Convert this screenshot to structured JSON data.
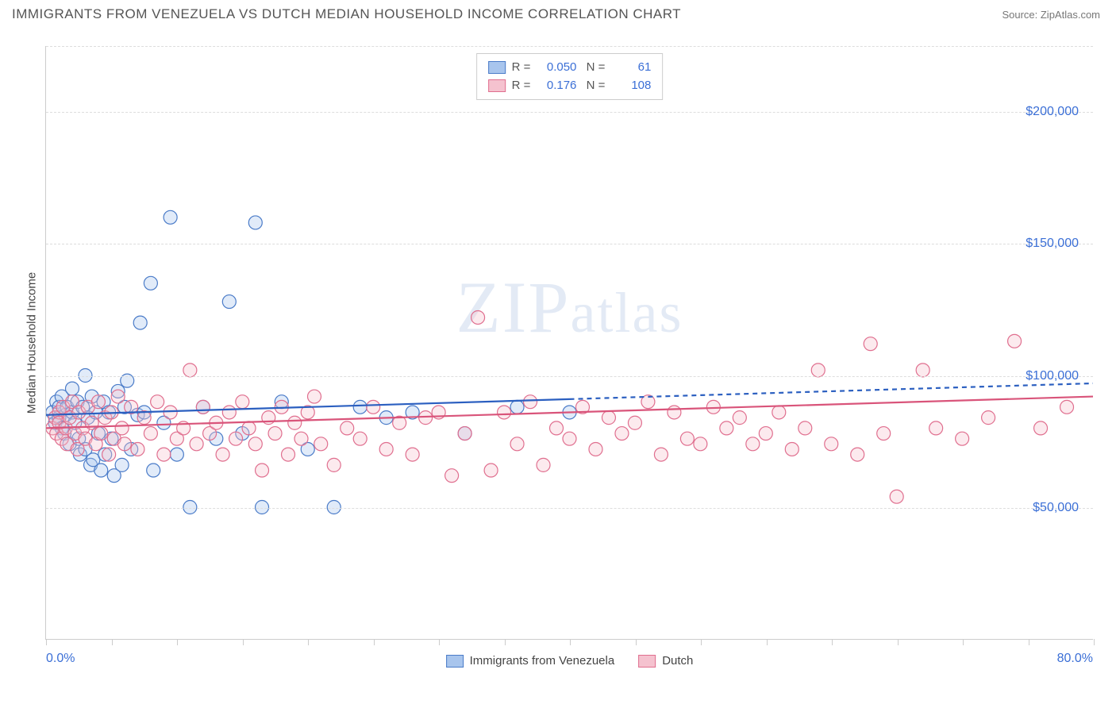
{
  "title": "IMMIGRANTS FROM VENEZUELA VS DUTCH MEDIAN HOUSEHOLD INCOME CORRELATION CHART",
  "source": "Source: ZipAtlas.com",
  "watermark": "ZIPatlas",
  "y_axis_label": "Median Household Income",
  "chart": {
    "type": "scatter",
    "background_color": "#ffffff",
    "grid_color": "#dddddd",
    "axis_color": "#cccccc",
    "tick_label_color": "#3b6fd6",
    "xlim": [
      0,
      80
    ],
    "ylim": [
      0,
      225000
    ],
    "x_start_label": "0.0%",
    "x_end_label": "80.0%",
    "x_tick_step": 5,
    "y_gridlines": [
      50000,
      100000,
      150000,
      200000,
      225000
    ],
    "y_tick_labels": [
      "$50,000",
      "$100,000",
      "$150,000",
      "$200,000"
    ],
    "marker_radius": 8.5,
    "marker_fill_opacity": 0.35,
    "marker_stroke_width": 1.2,
    "trend_line_width": 2.2,
    "series": [
      {
        "name": "Immigrants from Venezuela",
        "fill": "#a8c5ed",
        "stroke": "#4a7bc8",
        "trend_color": "#2b5fc0",
        "dash_after_x": 40,
        "R": "0.050",
        "N": "61",
        "trend": {
          "x1": 0,
          "y1": 85000,
          "x2": 80,
          "y2": 97000
        },
        "points": [
          [
            0.5,
            86000
          ],
          [
            0.7,
            82000
          ],
          [
            0.8,
            90000
          ],
          [
            1.0,
            84000
          ],
          [
            1.0,
            88000
          ],
          [
            1.2,
            80000
          ],
          [
            1.2,
            92000
          ],
          [
            1.4,
            78000
          ],
          [
            1.5,
            85000
          ],
          [
            1.6,
            88000
          ],
          [
            1.8,
            74000
          ],
          [
            2.0,
            86000
          ],
          [
            2.0,
            95000
          ],
          [
            2.2,
            82000
          ],
          [
            2.4,
            90000
          ],
          [
            2.5,
            76000
          ],
          [
            2.6,
            70000
          ],
          [
            2.8,
            88000
          ],
          [
            3.0,
            72000
          ],
          [
            3.0,
            100000
          ],
          [
            3.2,
            84000
          ],
          [
            3.4,
            66000
          ],
          [
            3.5,
            92000
          ],
          [
            3.6,
            68000
          ],
          [
            3.8,
            86000
          ],
          [
            4.0,
            78000
          ],
          [
            4.2,
            64000
          ],
          [
            4.4,
            90000
          ],
          [
            4.5,
            70000
          ],
          [
            4.8,
            86000
          ],
          [
            5.0,
            76000
          ],
          [
            5.2,
            62000
          ],
          [
            5.5,
            94000
          ],
          [
            5.8,
            66000
          ],
          [
            6.0,
            88000
          ],
          [
            6.2,
            98000
          ],
          [
            6.5,
            72000
          ],
          [
            7.0,
            85000
          ],
          [
            7.2,
            120000
          ],
          [
            7.5,
            86000
          ],
          [
            8.0,
            135000
          ],
          [
            8.2,
            64000
          ],
          [
            9.0,
            82000
          ],
          [
            9.5,
            160000
          ],
          [
            10.0,
            70000
          ],
          [
            11.0,
            50000
          ],
          [
            12.0,
            88000
          ],
          [
            13.0,
            76000
          ],
          [
            14.0,
            128000
          ],
          [
            15.0,
            78000
          ],
          [
            16.0,
            158000
          ],
          [
            16.5,
            50000
          ],
          [
            18.0,
            90000
          ],
          [
            20.0,
            72000
          ],
          [
            22.0,
            50000
          ],
          [
            24.0,
            88000
          ],
          [
            26.0,
            84000
          ],
          [
            28.0,
            86000
          ],
          [
            32.0,
            78000
          ],
          [
            36.0,
            88000
          ],
          [
            40.0,
            86000
          ]
        ]
      },
      {
        "name": "Dutch",
        "fill": "#f5c2cf",
        "stroke": "#e06f8f",
        "trend_color": "#d9547a",
        "dash_after_x": 80,
        "R": "0.176",
        "N": "108",
        "trend": {
          "x1": 0,
          "y1": 80000,
          "x2": 80,
          "y2": 92000
        },
        "points": [
          [
            0.5,
            80000
          ],
          [
            0.7,
            84000
          ],
          [
            0.8,
            78000
          ],
          [
            1.0,
            86000
          ],
          [
            1.0,
            82000
          ],
          [
            1.2,
            76000
          ],
          [
            1.3,
            88000
          ],
          [
            1.5,
            80000
          ],
          [
            1.6,
            74000
          ],
          [
            1.8,
            84000
          ],
          [
            2.0,
            90000
          ],
          [
            2.2,
            78000
          ],
          [
            2.4,
            72000
          ],
          [
            2.5,
            86000
          ],
          [
            2.8,
            80000
          ],
          [
            3.0,
            76000
          ],
          [
            3.2,
            88000
          ],
          [
            3.5,
            82000
          ],
          [
            3.8,
            74000
          ],
          [
            4.0,
            90000
          ],
          [
            4.2,
            78000
          ],
          [
            4.5,
            84000
          ],
          [
            4.8,
            70000
          ],
          [
            5.0,
            86000
          ],
          [
            5.2,
            76000
          ],
          [
            5.5,
            92000
          ],
          [
            5.8,
            80000
          ],
          [
            6.0,
            74000
          ],
          [
            6.5,
            88000
          ],
          [
            7.0,
            72000
          ],
          [
            7.5,
            84000
          ],
          [
            8.0,
            78000
          ],
          [
            8.5,
            90000
          ],
          [
            9.0,
            70000
          ],
          [
            9.5,
            86000
          ],
          [
            10.0,
            76000
          ],
          [
            10.5,
            80000
          ],
          [
            11.0,
            102000
          ],
          [
            11.5,
            74000
          ],
          [
            12.0,
            88000
          ],
          [
            12.5,
            78000
          ],
          [
            13.0,
            82000
          ],
          [
            13.5,
            70000
          ],
          [
            14.0,
            86000
          ],
          [
            14.5,
            76000
          ],
          [
            15.0,
            90000
          ],
          [
            15.5,
            80000
          ],
          [
            16.0,
            74000
          ],
          [
            16.5,
            64000
          ],
          [
            17.0,
            84000
          ],
          [
            17.5,
            78000
          ],
          [
            18.0,
            88000
          ],
          [
            18.5,
            70000
          ],
          [
            19.0,
            82000
          ],
          [
            19.5,
            76000
          ],
          [
            20.0,
            86000
          ],
          [
            20.5,
            92000
          ],
          [
            21.0,
            74000
          ],
          [
            22.0,
            66000
          ],
          [
            23.0,
            80000
          ],
          [
            24.0,
            76000
          ],
          [
            25.0,
            88000
          ],
          [
            26.0,
            72000
          ],
          [
            27.0,
            82000
          ],
          [
            28.0,
            70000
          ],
          [
            29.0,
            84000
          ],
          [
            30.0,
            86000
          ],
          [
            31.0,
            62000
          ],
          [
            32.0,
            78000
          ],
          [
            33.0,
            122000
          ],
          [
            34.0,
            64000
          ],
          [
            35.0,
            86000
          ],
          [
            36.0,
            74000
          ],
          [
            37.0,
            90000
          ],
          [
            38.0,
            66000
          ],
          [
            39.0,
            80000
          ],
          [
            40.0,
            76000
          ],
          [
            41.0,
            88000
          ],
          [
            42.0,
            72000
          ],
          [
            43.0,
            84000
          ],
          [
            44.0,
            78000
          ],
          [
            45.0,
            82000
          ],
          [
            46.0,
            90000
          ],
          [
            47.0,
            70000
          ],
          [
            48.0,
            86000
          ],
          [
            49.0,
            76000
          ],
          [
            50.0,
            74000
          ],
          [
            51.0,
            88000
          ],
          [
            52.0,
            80000
          ],
          [
            53.0,
            84000
          ],
          [
            54.0,
            74000
          ],
          [
            55.0,
            78000
          ],
          [
            56.0,
            86000
          ],
          [
            57.0,
            72000
          ],
          [
            58.0,
            80000
          ],
          [
            59.0,
            102000
          ],
          [
            60.0,
            74000
          ],
          [
            62.0,
            70000
          ],
          [
            63.0,
            112000
          ],
          [
            64.0,
            78000
          ],
          [
            65.0,
            54000
          ],
          [
            67.0,
            102000
          ],
          [
            68.0,
            80000
          ],
          [
            70.0,
            76000
          ],
          [
            72.0,
            84000
          ],
          [
            74.0,
            113000
          ],
          [
            76.0,
            80000
          ],
          [
            78.0,
            88000
          ]
        ]
      }
    ]
  }
}
